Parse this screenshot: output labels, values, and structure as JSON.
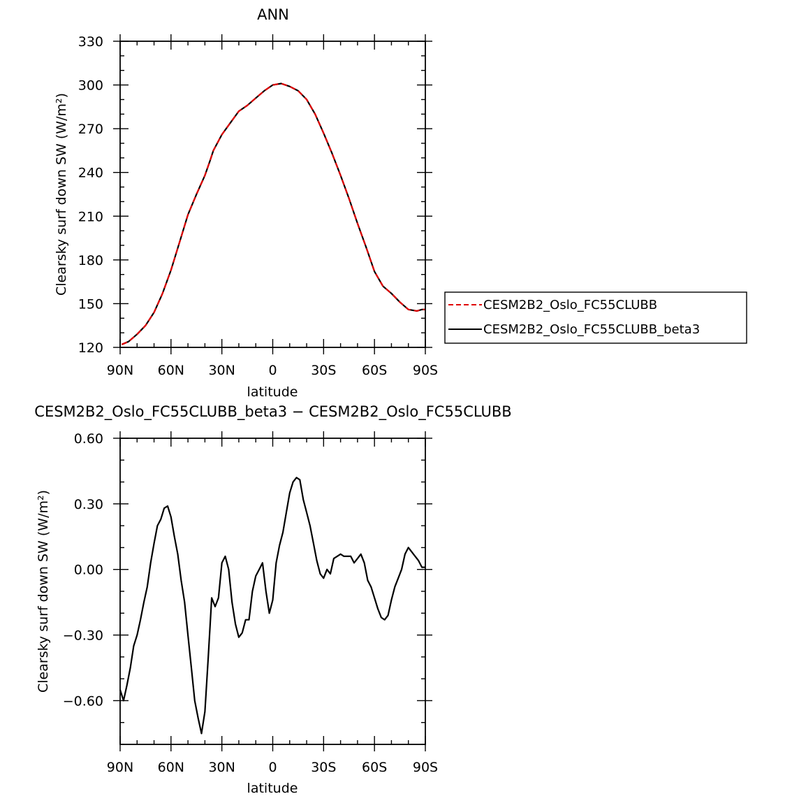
{
  "chart_data": [
    {
      "type": "line",
      "title": "ANN",
      "xlabel": "latitude",
      "ylabel": "Clearsky surf down SW (W/m²)",
      "x_ticks": [
        90,
        60,
        30,
        0,
        -30,
        -60,
        -90
      ],
      "x_tick_labels": [
        "90N",
        "60N",
        "30N",
        "0",
        "30S",
        "60S",
        "90S"
      ],
      "xlim": [
        90,
        -90
      ],
      "y_ticks": [
        120,
        150,
        180,
        210,
        240,
        270,
        300,
        330
      ],
      "y_tick_labels": [
        "120",
        "150",
        "180",
        "210",
        "240",
        "270",
        "300",
        "330"
      ],
      "ylim": [
        120,
        330
      ],
      "grid": false,
      "legend": "right",
      "series": [
        {
          "name": "CESM2B2_Oslo_FC55CLUBB",
          "color": "#e00000",
          "dash": "dashed",
          "x": [
            89,
            85,
            80,
            75,
            70,
            65,
            60,
            55,
            50,
            45,
            40,
            37,
            35,
            30,
            25,
            20,
            15,
            10,
            5,
            0,
            -5,
            -10,
            -15,
            -20,
            -25,
            -30,
            -35,
            -40,
            -45,
            -50,
            -55,
            -60,
            -65,
            -70,
            -75,
            -80,
            -85,
            -88,
            -90
          ],
          "y": [
            122,
            124,
            129,
            135,
            144,
            157,
            173,
            192,
            211,
            225,
            238,
            248,
            255,
            266,
            274,
            282,
            286,
            291,
            296,
            300,
            301,
            299,
            296,
            290,
            280,
            267,
            253,
            238,
            222,
            205,
            189,
            172,
            162,
            157,
            151,
            146,
            145,
            146,
            146
          ]
        },
        {
          "name": "CESM2B2_Oslo_FC55CLUBB_beta3",
          "color": "#000000",
          "dash": "solid",
          "x": [
            89,
            85,
            80,
            75,
            70,
            65,
            60,
            55,
            50,
            45,
            40,
            37,
            35,
            30,
            25,
            20,
            15,
            10,
            5,
            0,
            -5,
            -10,
            -15,
            -20,
            -25,
            -30,
            -35,
            -40,
            -45,
            -50,
            -55,
            -60,
            -65,
            -70,
            -75,
            -80,
            -85,
            -88,
            -90
          ],
          "y": [
            122,
            124,
            129,
            135,
            144,
            157,
            173,
            192,
            211,
            225,
            238,
            248,
            255,
            266,
            274,
            282,
            286,
            291,
            296,
            300,
            301,
            299,
            296,
            290,
            280,
            267,
            253,
            238,
            222,
            205,
            189,
            172,
            162,
            157,
            151,
            146,
            145,
            146,
            146
          ]
        }
      ]
    },
    {
      "type": "line",
      "title": "CESM2B2_Oslo_FC55CLUBB_beta3 − CESM2B2_Oslo_FC55CLUBB",
      "xlabel": "latitude",
      "ylabel": "Clearsky surf down SW (W/m²)",
      "x_ticks": [
        90,
        60,
        30,
        0,
        -30,
        -60,
        -90
      ],
      "x_tick_labels": [
        "90N",
        "60N",
        "30N",
        "0",
        "30S",
        "60S",
        "90S"
      ],
      "xlim": [
        90,
        -90
      ],
      "y_ticks": [
        -0.6,
        -0.3,
        0.0,
        0.3,
        0.6
      ],
      "y_tick_labels": [
        "−0.60",
        "−0.30",
        "0.00",
        "0.30",
        "0.60"
      ],
      "ylim": [
        -0.8,
        0.6
      ],
      "grid": false,
      "legend": "none",
      "series": [
        {
          "color": "#000000",
          "dash": "solid",
          "x": [
            90,
            88,
            86,
            84,
            82,
            80,
            78,
            76,
            74,
            72,
            70,
            68,
            66,
            64,
            62,
            60,
            58,
            56,
            54,
            52,
            50,
            48,
            46,
            44,
            42,
            40,
            38,
            36,
            34,
            32,
            30,
            28,
            26,
            24,
            22,
            20,
            18,
            16,
            14,
            12,
            10,
            8,
            6,
            4,
            2,
            0,
            -2,
            -4,
            -6,
            -8,
            -10,
            -12,
            -14,
            -16,
            -18,
            -20,
            -22,
            -24,
            -26,
            -28,
            -30,
            -32,
            -34,
            -36,
            -38,
            -40,
            -42,
            -44,
            -46,
            -48,
            -50,
            -52,
            -54,
            -56,
            -58,
            -60,
            -62,
            -64,
            -66,
            -68,
            -70,
            -72,
            -74,
            -76,
            -78,
            -80,
            -82,
            -84,
            -86,
            -88,
            -90
          ],
          "y": [
            -0.55,
            -0.6,
            -0.53,
            -0.45,
            -0.35,
            -0.3,
            -0.23,
            -0.15,
            -0.08,
            0.03,
            0.12,
            0.2,
            0.23,
            0.28,
            0.29,
            0.24,
            0.15,
            0.07,
            -0.05,
            -0.15,
            -0.3,
            -0.45,
            -0.6,
            -0.68,
            -0.75,
            -0.65,
            -0.4,
            -0.13,
            -0.17,
            -0.13,
            0.03,
            0.06,
            0.0,
            -0.15,
            -0.25,
            -0.31,
            -0.29,
            -0.23,
            -0.23,
            -0.1,
            -0.03,
            0.0,
            0.03,
            -0.1,
            -0.2,
            -0.14,
            0.03,
            0.11,
            0.17,
            0.26,
            0.35,
            0.4,
            0.42,
            0.41,
            0.32,
            0.26,
            0.2,
            0.12,
            0.04,
            -0.02,
            -0.04,
            0.0,
            -0.02,
            0.05,
            0.06,
            0.07,
            0.06,
            0.06,
            0.06,
            0.03,
            0.05,
            0.07,
            0.03,
            -0.05,
            -0.08,
            -0.13,
            -0.18,
            -0.22,
            -0.23,
            -0.21,
            -0.14,
            -0.08,
            -0.04,
            0.0,
            0.07,
            0.1,
            0.08,
            0.06,
            0.04,
            0.01,
            0.01
          ]
        }
      ]
    }
  ]
}
